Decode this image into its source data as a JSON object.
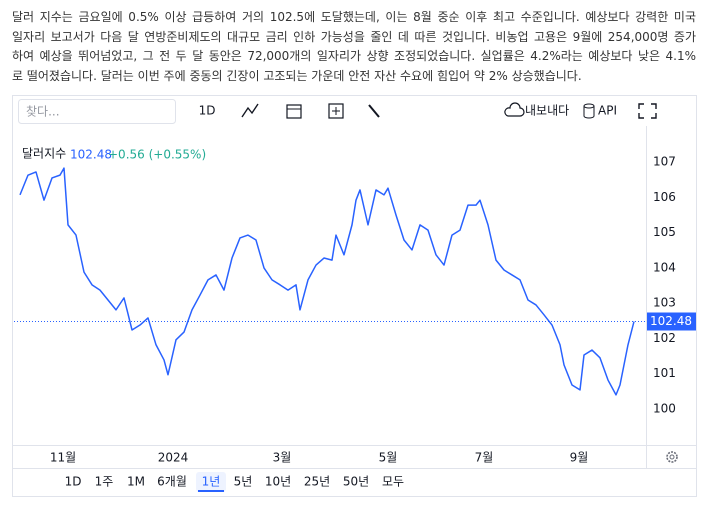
{
  "article": {
    "lines": [
      "달러 지수는 금요일에 0.5% 이상 급등하여 거의 102.5에 도달했는데, 이는 8월 중순 이후 최고 수준입니다. 예상보다 강력한 미국",
      "일자리 보고서가 다음 달 연방준비제도의 대규모 금리 인하 가능성을 줄인 데 따른 것입니다. 비농업 고용은 9월에 254,000명 증가",
      "하여 예상을 뛰어넘었고, 그 전 두 달 동안은 72,000개의 일자리가 상향 조정되었습니다. 실업률은 4.2%라는 예상보다 낮은 4.1%",
      "로 떨어졌습니다. 달러는 이번 주에 중동의 긴장이 고조되는 가운데 안전 자산 수요에 힘입어 약 2% 상승했습니다."
    ]
  },
  "toolbar": {
    "search": "찾다...",
    "interval": "1D",
    "export": "내보내다",
    "api": "API"
  },
  "ranges": {
    "items": [
      "1D",
      "1주",
      "1M",
      "6개월",
      "1년",
      "5년",
      "10년",
      "25년",
      "50년",
      "모두"
    ],
    "selected": 4
  },
  "chart_data": {
    "type": "line",
    "legend": {
      "price": "102.48",
      "change": "+0.56 (+0.55%)"
    },
    "last_value": 102.48,
    "x": [
      1.5,
      3.5,
      5.5,
      7.5,
      9.5,
      11.5,
      12.5,
      13.5,
      15.5,
      17.5,
      19.5,
      21.5,
      23.5,
      25.5,
      27.5,
      29.5,
      31.5,
      33.5,
      35.5,
      37.5,
      38.5,
      40.5,
      42.5,
      44.5,
      46.5,
      48.5,
      50.5,
      52.5,
      54.5,
      56.5,
      58.5,
      60.5,
      62.5,
      64.5,
      66.5,
      68.5,
      70.5,
      71.5,
      73.5,
      75.5,
      77.5,
      79.5,
      80.5,
      82.5,
      84.5,
      85.5,
      86.5,
      88.5,
      90.5,
      92.5,
      93.5,
      95.5,
      97.5,
      99.5,
      101.5,
      103.5,
      105.5,
      107.5,
      109.5,
      111.5,
      113.5,
      115.5,
      116.5,
      118.5,
      120.5,
      122.5,
      124.5,
      126.5,
      128.5,
      130.5,
      132.5,
      134.5,
      136.5,
      137.5,
      139.5,
      141.5,
      142.5,
      144.5,
      146.5,
      148.5,
      150.5,
      151.5,
      153.5,
      155
    ],
    "series": [
      {
        "name": "달러지수",
        "color": "#2962ff",
        "values": [
          106.07,
          106.63,
          106.72,
          105.92,
          106.55,
          106.63,
          106.83,
          105.22,
          104.93,
          103.88,
          103.52,
          103.37,
          103.09,
          102.81,
          103.15,
          102.24,
          102.38,
          102.58,
          101.82,
          101.39,
          100.97,
          101.96,
          102.18,
          102.81,
          103.23,
          103.66,
          103.8,
          103.37,
          104.28,
          104.85,
          104.93,
          104.79,
          104.0,
          103.66,
          103.52,
          103.37,
          103.52,
          102.81,
          103.66,
          104.08,
          104.28,
          104.22,
          104.93,
          104.37,
          105.22,
          105.92,
          106.21,
          105.22,
          106.21,
          106.07,
          106.26,
          105.5,
          104.79,
          104.51,
          105.22,
          105.07,
          104.37,
          104.08,
          104.93,
          105.07,
          105.78,
          105.78,
          105.92,
          105.22,
          104.22,
          103.94,
          103.8,
          103.66,
          103.09,
          102.95,
          102.67,
          102.38,
          101.82,
          101.25,
          100.68,
          100.54,
          101.53,
          101.67,
          101.45,
          100.82,
          100.4,
          100.68,
          101.82,
          102.48
        ]
      }
    ],
    "xlim": [
      0,
      158
    ],
    "xticks": [
      {
        "value": 12.25,
        "label": "11월"
      },
      {
        "value": 39.75,
        "label": "2024"
      },
      {
        "value": 67,
        "label": "3월"
      },
      {
        "value": 93.5,
        "label": "5월"
      },
      {
        "value": 117.5,
        "label": "7월"
      },
      {
        "value": 141.25,
        "label": "9월"
      }
    ],
    "ylim": [
      99.12,
      107.91
    ],
    "yticks": [
      100,
      101,
      102,
      103,
      104,
      105,
      106,
      107
    ],
    "grid": false
  }
}
